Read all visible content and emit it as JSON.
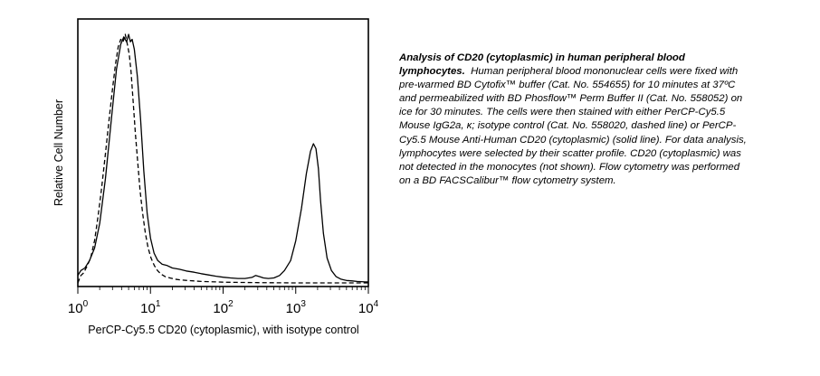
{
  "caption": {
    "title": "Analysis of CD20 (cytoplasmic) in human peripheral blood lymphocytes.",
    "body": "Human peripheral blood mononuclear cells were fixed with pre-warmed BD Cytofix™ buffer (Cat. No. 554655) for 10 minutes at 37ºC and permeabilized with BD Phosflow™ Perm Buffer II (Cat. No. 558052) on ice for 30 minutes. The cells were then stained with either PerCP-Cy5.5 Mouse IgG2a, κ; isotype control (Cat. No. 558020, dashed line) or PerCP-Cy5.5 Mouse Anti-Human CD20 (cytoplasmic) (solid line). For data analysis, lymphocytes were selected by their scatter profile. CD20 (cytoplasmic) was not detected in the monocytes (not shown). Flow cytometry was performed on a BD FACSCalibur™ flow cytometry system."
  },
  "chart_data": {
    "type": "line",
    "title": "",
    "xlabel": "PerCP-Cy5.5 CD20 (cytoplasmic), with isotype control",
    "ylabel": "Relative Cell Number",
    "xscale": "log",
    "xlim": [
      1,
      10000
    ],
    "ylim": [
      0,
      1
    ],
    "grid": false,
    "x_ticks": [
      {
        "base": "10",
        "exp": "0"
      },
      {
        "base": "10",
        "exp": "1"
      },
      {
        "base": "10",
        "exp": "2"
      },
      {
        "base": "10",
        "exp": "3"
      },
      {
        "base": "10",
        "exp": "4"
      }
    ],
    "series": [
      {
        "style": "solid",
        "color": "#000000",
        "x": [
          1.0,
          1.1,
          1.25,
          1.45,
          1.7,
          2.0,
          2.4,
          2.9,
          3.4,
          3.9,
          4.3,
          4.7,
          5.0,
          5.3,
          5.6,
          6.0,
          6.6,
          7.3,
          8.1,
          9.0,
          10.0,
          11.2,
          12.6,
          14.5,
          17.0,
          20,
          25,
          31,
          40,
          50,
          63,
          80,
          100,
          126,
          160,
          200,
          250,
          280,
          320,
          360,
          420,
          500,
          600,
          700,
          850,
          1000,
          1200,
          1400,
          1600,
          1750,
          1900,
          2050,
          2200,
          2400,
          2700,
          3100,
          3600,
          4200,
          5000,
          6000,
          7000,
          8000,
          9000,
          10000
        ],
        "y": [
          0.03,
          0.05,
          0.06,
          0.09,
          0.14,
          0.24,
          0.42,
          0.66,
          0.86,
          0.96,
          0.99,
          0.97,
          1.0,
          0.97,
          0.98,
          0.94,
          0.83,
          0.66,
          0.45,
          0.28,
          0.18,
          0.12,
          0.09,
          0.075,
          0.07,
          0.06,
          0.055,
          0.048,
          0.043,
          0.037,
          0.032,
          0.027,
          0.023,
          0.02,
          0.018,
          0.018,
          0.022,
          0.03,
          0.025,
          0.02,
          0.018,
          0.02,
          0.03,
          0.05,
          0.09,
          0.17,
          0.3,
          0.44,
          0.53,
          0.56,
          0.54,
          0.46,
          0.33,
          0.2,
          0.1,
          0.05,
          0.025,
          0.015,
          0.01,
          0.008,
          0.006,
          0.005,
          0.004,
          0.004
        ]
      },
      {
        "style": "dashed",
        "color": "#000000",
        "x": [
          1.0,
          1.1,
          1.2,
          1.35,
          1.5,
          1.7,
          1.9,
          2.1,
          2.4,
          2.7,
          3.0,
          3.3,
          3.6,
          3.9,
          4.2,
          4.5,
          4.8,
          5.1,
          5.4,
          5.8,
          6.2,
          6.7,
          7.2,
          7.8,
          8.5,
          9.3,
          10.2,
          11.3,
          12.5,
          14.0,
          16.0,
          18.5,
          22,
          26,
          32,
          40,
          50,
          63,
          80,
          100,
          150,
          300,
          1000,
          10000
        ],
        "y": [
          0.0,
          0.03,
          0.04,
          0.07,
          0.1,
          0.17,
          0.27,
          0.37,
          0.52,
          0.66,
          0.78,
          0.88,
          0.95,
          0.98,
          0.97,
          1.0,
          0.96,
          0.92,
          0.85,
          0.72,
          0.6,
          0.48,
          0.37,
          0.28,
          0.2,
          0.14,
          0.1,
          0.07,
          0.05,
          0.035,
          0.025,
          0.02,
          0.015,
          0.012,
          0.01,
          0.008,
          0.006,
          0.005,
          0.004,
          0.003,
          0.002,
          0.001,
          0.0,
          0.0
        ]
      }
    ]
  }
}
